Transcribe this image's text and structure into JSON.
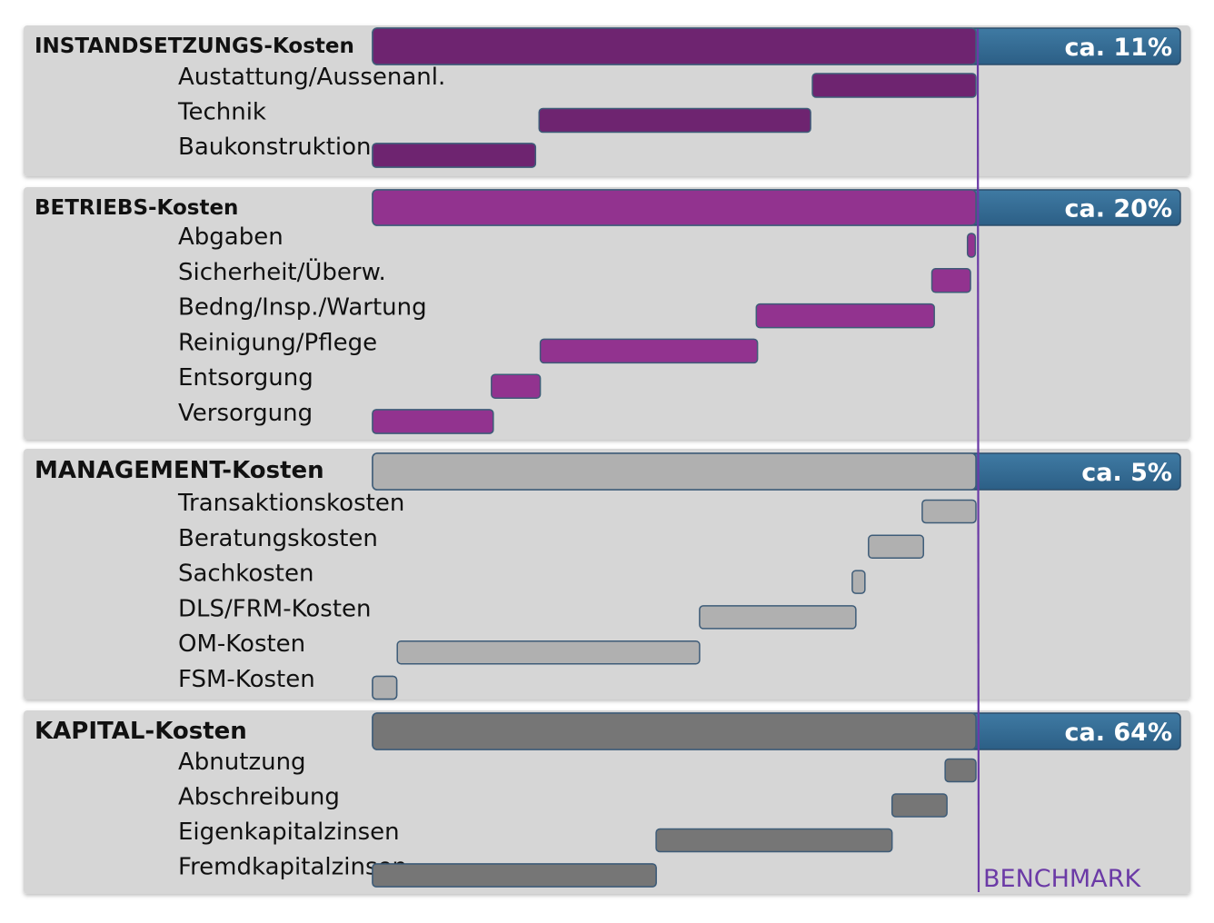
{
  "chart_data": {
    "type": "bar",
    "subtype": "waterfall",
    "benchmark_label": "BENCHMARK",
    "benchmark_color": "#6b3aa6",
    "total_bar_color": "#2c5f86",
    "sections": [
      {
        "title": "INSTANDSETZUNGS-Kosten",
        "share_label": "ca. 11%",
        "color": "#6e2470",
        "items": [
          {
            "label": "Austattung/Aussenanl.",
            "start": 72.9,
            "end": 100
          },
          {
            "label": "Technik",
            "start": 27.6,
            "end": 72.6
          },
          {
            "label": "Baukonstruktion",
            "start": 0,
            "end": 27.0
          }
        ]
      },
      {
        "title": "BETRIEBS-Kosten",
        "share_label": "ca. 20%",
        "color": "#92338f",
        "items": [
          {
            "label": "Abgaben",
            "start": 98.6,
            "end": 99.9
          },
          {
            "label": "Sicherheit/Überw.",
            "start": 92.7,
            "end": 99.1
          },
          {
            "label": "Bedng/Insp./Wartung",
            "start": 63.6,
            "end": 93.1
          },
          {
            "label": "Reinigung/Pflege",
            "start": 27.8,
            "end": 63.8
          },
          {
            "label": "Entsorgung",
            "start": 19.7,
            "end": 27.8
          },
          {
            "label": "Versorgung",
            "start": 0,
            "end": 20.0
          }
        ]
      },
      {
        "title": "MANAGEMENT-Kosten",
        "share_label": "ca. 5%",
        "color": "#b0b0b0",
        "items": [
          {
            "label": "Transaktionskosten",
            "start": 91.1,
            "end": 100
          },
          {
            "label": "Beratungskosten",
            "start": 82.2,
            "end": 91.3
          },
          {
            "label": "Sachkosten",
            "start": 79.5,
            "end": 81.6
          },
          {
            "label": "DLS/FRM-Kosten",
            "start": 54.2,
            "end": 80.1
          },
          {
            "label": "OM-Kosten",
            "start": 4.1,
            "end": 54.2
          },
          {
            "label": "FSM-Kosten",
            "start": 0,
            "end": 4.0
          }
        ]
      },
      {
        "title": "KAPITAL-Kosten",
        "share_label": "ca. 64%",
        "color": "#767676",
        "items": [
          {
            "label": "Abnutzung",
            "start": 94.9,
            "end": 100
          },
          {
            "label": "Abschreibung",
            "start": 86.1,
            "end": 95.2
          },
          {
            "label": "Eigenkapitalzinsen",
            "start": 47.0,
            "end": 86.1
          },
          {
            "label": "Fremdkapitalzinsen",
            "start": 0,
            "end": 47.0
          }
        ]
      }
    ]
  }
}
